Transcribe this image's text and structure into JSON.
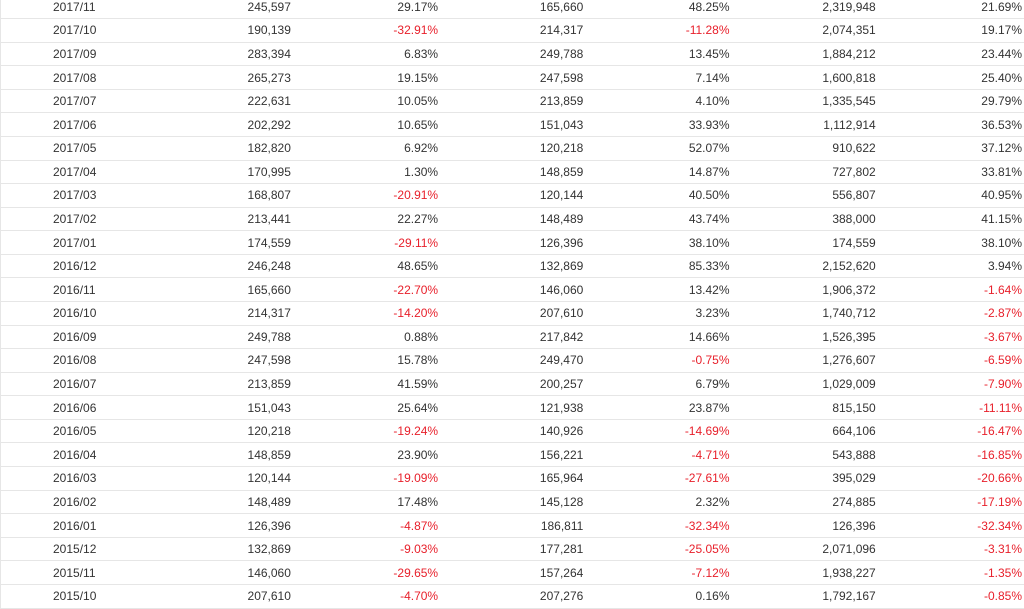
{
  "colors": {
    "negative": "#e8202b",
    "text": "#333333",
    "row_border": "#e6e6e6"
  },
  "rows": [
    {
      "month": "2017/11",
      "v1": "245,597",
      "p1": "29.17%",
      "v2": "165,660",
      "p2": "48.25%",
      "v3": "2,319,948",
      "p3": "21.69%"
    },
    {
      "month": "2017/10",
      "v1": "190,139",
      "p1": "-32.91%",
      "v2": "214,317",
      "p2": "-11.28%",
      "v3": "2,074,351",
      "p3": "19.17%"
    },
    {
      "month": "2017/09",
      "v1": "283,394",
      "p1": "6.83%",
      "v2": "249,788",
      "p2": "13.45%",
      "v3": "1,884,212",
      "p3": "23.44%"
    },
    {
      "month": "2017/08",
      "v1": "265,273",
      "p1": "19.15%",
      "v2": "247,598",
      "p2": "7.14%",
      "v3": "1,600,818",
      "p3": "25.40%"
    },
    {
      "month": "2017/07",
      "v1": "222,631",
      "p1": "10.05%",
      "v2": "213,859",
      "p2": "4.10%",
      "v3": "1,335,545",
      "p3": "29.79%"
    },
    {
      "month": "2017/06",
      "v1": "202,292",
      "p1": "10.65%",
      "v2": "151,043",
      "p2": "33.93%",
      "v3": "1,112,914",
      "p3": "36.53%"
    },
    {
      "month": "2017/05",
      "v1": "182,820",
      "p1": "6.92%",
      "v2": "120,218",
      "p2": "52.07%",
      "v3": "910,622",
      "p3": "37.12%"
    },
    {
      "month": "2017/04",
      "v1": "170,995",
      "p1": "1.30%",
      "v2": "148,859",
      "p2": "14.87%",
      "v3": "727,802",
      "p3": "33.81%"
    },
    {
      "month": "2017/03",
      "v1": "168,807",
      "p1": "-20.91%",
      "v2": "120,144",
      "p2": "40.50%",
      "v3": "556,807",
      "p3": "40.95%"
    },
    {
      "month": "2017/02",
      "v1": "213,441",
      "p1": "22.27%",
      "v2": "148,489",
      "p2": "43.74%",
      "v3": "388,000",
      "p3": "41.15%"
    },
    {
      "month": "2017/01",
      "v1": "174,559",
      "p1": "-29.11%",
      "v2": "126,396",
      "p2": "38.10%",
      "v3": "174,559",
      "p3": "38.10%"
    },
    {
      "month": "2016/12",
      "v1": "246,248",
      "p1": "48.65%",
      "v2": "132,869",
      "p2": "85.33%",
      "v3": "2,152,620",
      "p3": "3.94%"
    },
    {
      "month": "2016/11",
      "v1": "165,660",
      "p1": "-22.70%",
      "v2": "146,060",
      "p2": "13.42%",
      "v3": "1,906,372",
      "p3": "-1.64%"
    },
    {
      "month": "2016/10",
      "v1": "214,317",
      "p1": "-14.20%",
      "v2": "207,610",
      "p2": "3.23%",
      "v3": "1,740,712",
      "p3": "-2.87%"
    },
    {
      "month": "2016/09",
      "v1": "249,788",
      "p1": "0.88%",
      "v2": "217,842",
      "p2": "14.66%",
      "v3": "1,526,395",
      "p3": "-3.67%"
    },
    {
      "month": "2016/08",
      "v1": "247,598",
      "p1": "15.78%",
      "v2": "249,470",
      "p2": "-0.75%",
      "v3": "1,276,607",
      "p3": "-6.59%"
    },
    {
      "month": "2016/07",
      "v1": "213,859",
      "p1": "41.59%",
      "v2": "200,257",
      "p2": "6.79%",
      "v3": "1,029,009",
      "p3": "-7.90%"
    },
    {
      "month": "2016/06",
      "v1": "151,043",
      "p1": "25.64%",
      "v2": "121,938",
      "p2": "23.87%",
      "v3": "815,150",
      "p3": "-11.11%"
    },
    {
      "month": "2016/05",
      "v1": "120,218",
      "p1": "-19.24%",
      "v2": "140,926",
      "p2": "-14.69%",
      "v3": "664,106",
      "p3": "-16.47%"
    },
    {
      "month": "2016/04",
      "v1": "148,859",
      "p1": "23.90%",
      "v2": "156,221",
      "p2": "-4.71%",
      "v3": "543,888",
      "p3": "-16.85%"
    },
    {
      "month": "2016/03",
      "v1": "120,144",
      "p1": "-19.09%",
      "v2": "165,964",
      "p2": "-27.61%",
      "v3": "395,029",
      "p3": "-20.66%"
    },
    {
      "month": "2016/02",
      "v1": "148,489",
      "p1": "17.48%",
      "v2": "145,128",
      "p2": "2.32%",
      "v3": "274,885",
      "p3": "-17.19%"
    },
    {
      "month": "2016/01",
      "v1": "126,396",
      "p1": "-4.87%",
      "v2": "186,811",
      "p2": "-32.34%",
      "v3": "126,396",
      "p3": "-32.34%"
    },
    {
      "month": "2015/12",
      "v1": "132,869",
      "p1": "-9.03%",
      "v2": "177,281",
      "p2": "-25.05%",
      "v3": "2,071,096",
      "p3": "-3.31%"
    },
    {
      "month": "2015/11",
      "v1": "146,060",
      "p1": "-29.65%",
      "v2": "157,264",
      "p2": "-7.12%",
      "v3": "1,938,227",
      "p3": "-1.35%"
    },
    {
      "month": "2015/10",
      "v1": "207,610",
      "p1": "-4.70%",
      "v2": "207,276",
      "p2": "0.16%",
      "v3": "1,792,167",
      "p3": "-0.85%"
    }
  ]
}
